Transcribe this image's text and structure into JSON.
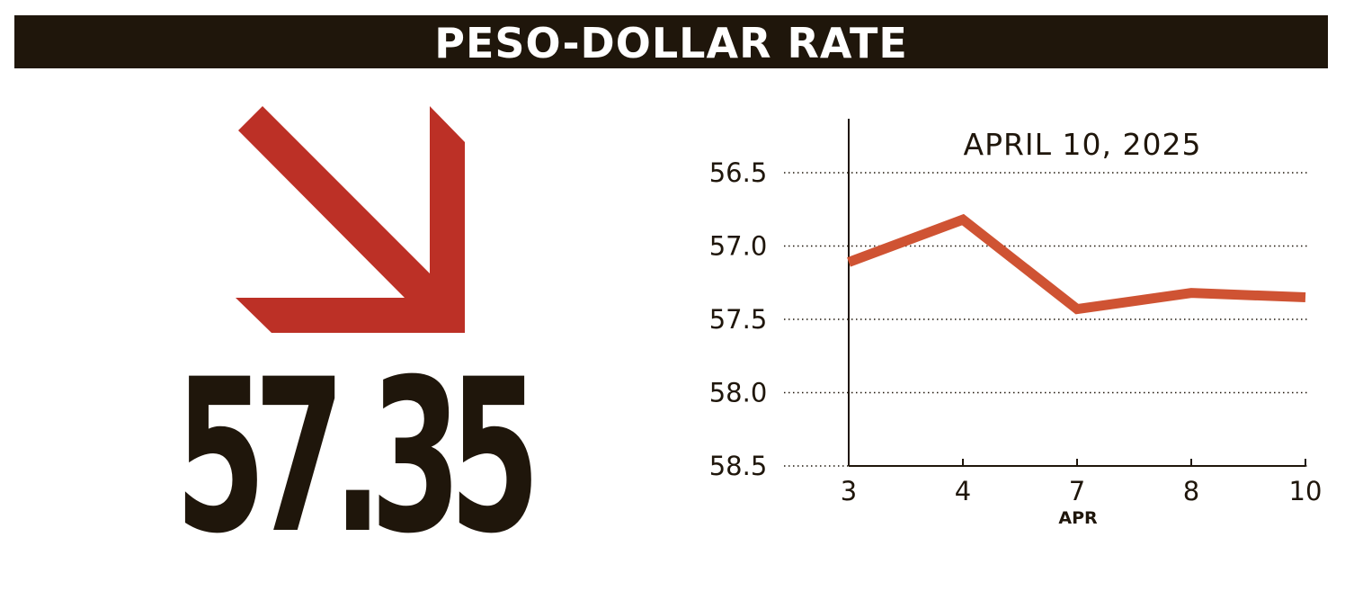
{
  "header": {
    "title": "PESO-DOLLAR RATE"
  },
  "rate": {
    "value": "57.35",
    "direction_icon": "arrow-down-right-icon",
    "arrow_color": "#bc3026"
  },
  "colors": {
    "header_background": "#1f160b",
    "text": "#1f160b",
    "line": "#cf5333"
  },
  "chart_data": {
    "type": "line",
    "title": "APRIL 10, 2025",
    "xlabel": "APR",
    "ylabel": "",
    "categories": [
      "3",
      "4",
      "7",
      "8",
      "10"
    ],
    "values": [
      57.11,
      56.82,
      57.43,
      57.32,
      57.35
    ],
    "ylim": [
      56.5,
      58.5
    ],
    "y_inverted": true,
    "yticks": [
      "56.5",
      "57.0",
      "57.5",
      "58.0",
      "58.5"
    ],
    "grid": "horizontal-dotted",
    "legend": "none"
  }
}
